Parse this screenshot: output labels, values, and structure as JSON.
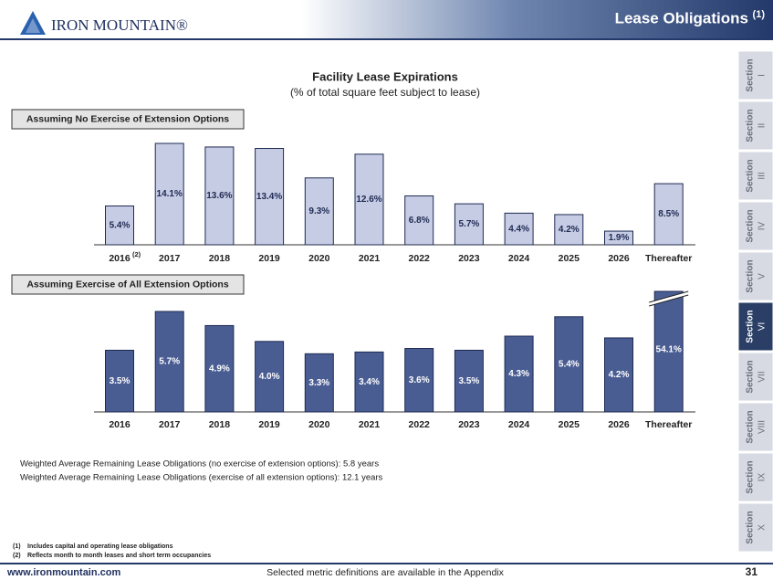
{
  "header": {
    "logo": "IRON MOUNTAIN®",
    "title": "Lease Obligations",
    "title_note": "(1)"
  },
  "figure": {
    "title": "Facility Lease Expirations",
    "subtitle": "(% of total square feet subject to lease)"
  },
  "chart_data": [
    {
      "type": "bar",
      "label": "Assuming No Exercise of Extension Options",
      "categories": [
        "2016",
        "2017",
        "2018",
        "2019",
        "2020",
        "2021",
        "2022",
        "2023",
        "2024",
        "2025",
        "2026",
        "Thereafter"
      ],
      "category_note": "(2)",
      "values": [
        5.4,
        14.1,
        13.6,
        13.4,
        9.3,
        12.6,
        6.8,
        5.7,
        4.4,
        4.2,
        1.9,
        8.5
      ],
      "value_labels": [
        "5.4%",
        "14.1%",
        "13.6%",
        "13.4%",
        "9.3%",
        "12.6%",
        "6.8%",
        "5.7%",
        "4.4%",
        "4.2%",
        "1.9%",
        "8.5%"
      ],
      "color": "#c6cce4"
    },
    {
      "type": "bar",
      "label": "Assuming Exercise of All Extension Options",
      "categories": [
        "2016",
        "2017",
        "2018",
        "2019",
        "2020",
        "2021",
        "2022",
        "2023",
        "2024",
        "2025",
        "2026",
        "Thereafter"
      ],
      "values": [
        3.5,
        5.7,
        4.9,
        4.0,
        3.3,
        3.4,
        3.6,
        3.5,
        4.3,
        5.4,
        4.2,
        54.1
      ],
      "value_labels": [
        "3.5%",
        "5.7%",
        "4.9%",
        "4.0%",
        "3.3%",
        "3.4%",
        "3.6%",
        "3.5%",
        "4.3%",
        "5.4%",
        "4.2%",
        "54.1%"
      ],
      "color": "#4a5d93"
    }
  ],
  "notes": [
    "Weighted Average Remaining Lease Obligations (no exercise of extension options):   5.8 years",
    "Weighted Average Remaining Lease Obligations (exercise of all extension options):  12.1 years"
  ],
  "footnotes": [
    {
      "marker": "(1)",
      "text": "Includes capital and operating lease obligations"
    },
    {
      "marker": "(2)",
      "text": "Reflects month to month leases and short term occupancies"
    }
  ],
  "footer": {
    "website": "www.ironmountain.com",
    "center": "Selected metric definitions are available in the Appendix",
    "page": "31"
  },
  "sidebar": {
    "active": 5,
    "tabs": [
      {
        "label": "Section",
        "numeral": "I"
      },
      {
        "label": "Section",
        "numeral": "II"
      },
      {
        "label": "Section",
        "numeral": "III"
      },
      {
        "label": "Section",
        "numeral": "IV"
      },
      {
        "label": "Section",
        "numeral": "V"
      },
      {
        "label": "Section",
        "numeral": "VI"
      },
      {
        "label": "Section",
        "numeral": "VII"
      },
      {
        "label": "Section",
        "numeral": "VIII"
      },
      {
        "label": "Section",
        "numeral": "IX"
      },
      {
        "label": "Section",
        "numeral": "X"
      }
    ]
  }
}
